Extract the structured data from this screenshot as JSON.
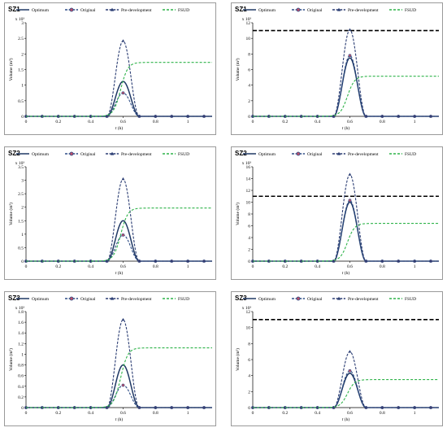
{
  "legend": [
    {
      "key": "optimum",
      "label": "Optimum",
      "color": "#1f3864",
      "dash": "",
      "marker": "none"
    },
    {
      "key": "original",
      "label": "Original",
      "color": "#2e4d86",
      "dash": "3,1.6",
      "marker": "circle"
    },
    {
      "key": "pre",
      "label": "Pre-development",
      "color": "#2b3d73",
      "dash": "3,1.6",
      "marker": "triangle"
    },
    {
      "key": "fsud",
      "label": "FSUD",
      "color": "#2fb34a",
      "dash": "3,2",
      "marker": "none"
    }
  ],
  "chart_data": [
    {
      "title": "SZ1",
      "type": "line",
      "xlabel": "t (h)",
      "ylabel": "Volume (m³)",
      "scale_label": "x 10³",
      "xlim": [
        0,
        1.15
      ],
      "xticks": [
        "0",
        "0.2",
        "0.4",
        "0.6",
        "0.8",
        "1"
      ],
      "ylim": [
        0,
        3
      ],
      "yticks": [
        "0",
        "0.5",
        "1",
        "1.5",
        "2",
        "2.5",
        "3"
      ],
      "threshold": null,
      "series": [
        {
          "key": "optimum",
          "name": "Optimum",
          "peak": 1.12
        },
        {
          "key": "original",
          "name": "Original",
          "peak": 0.75
        },
        {
          "key": "pre",
          "name": "Pre-development",
          "peak": 2.42
        },
        {
          "key": "fsud",
          "name": "FSUD",
          "final": 1.73
        }
      ]
    },
    {
      "title": "SZ1",
      "type": "line",
      "xlabel": "t (h)",
      "ylabel": "Volume (m³)",
      "scale_label": "x 10³",
      "xlim": [
        0,
        1.15
      ],
      "xticks": [
        "0",
        "0.2",
        "0.4",
        "0.6",
        "0.8",
        "1"
      ],
      "ylim": [
        0,
        12
      ],
      "yticks": [
        "0",
        "2",
        "4",
        "6",
        "8",
        "10",
        "12"
      ],
      "threshold": 11,
      "series": [
        {
          "key": "optimum",
          "name": "Optimum",
          "peak": 7.5
        },
        {
          "key": "original",
          "name": "Original",
          "peak": 7.8
        },
        {
          "key": "pre",
          "name": "Pre-development",
          "peak": 11.1
        },
        {
          "key": "fsud",
          "name": "FSUD",
          "final": 5.15
        }
      ]
    },
    {
      "title": "SZ2",
      "type": "line",
      "xlabel": "t (h)",
      "ylabel": "Volume (m³)",
      "scale_label": "x 10³",
      "xlim": [
        0,
        1.15
      ],
      "xticks": [
        "0",
        "0.2",
        "0.4",
        "0.6",
        "0.8",
        "1"
      ],
      "ylim": [
        0,
        3.5
      ],
      "yticks": [
        "0",
        "0.5",
        "1",
        "1.5",
        "2",
        "2.5",
        "3",
        "3.5"
      ],
      "threshold": null,
      "series": [
        {
          "key": "optimum",
          "name": "Optimum",
          "peak": 1.5
        },
        {
          "key": "original",
          "name": "Original",
          "peak": 0.97
        },
        {
          "key": "pre",
          "name": "Pre-development",
          "peak": 3.05
        },
        {
          "key": "fsud",
          "name": "FSUD",
          "final": 1.97
        }
      ]
    },
    {
      "title": "SZ2",
      "type": "line",
      "xlabel": "t (h)",
      "ylabel": "Volume (m³)",
      "scale_label": "x 10³",
      "xlim": [
        0,
        1.15
      ],
      "xticks": [
        "0",
        "0.2",
        "0.4",
        "0.6",
        "0.8",
        "1"
      ],
      "ylim": [
        0,
        16
      ],
      "yticks": [
        "0",
        "2",
        "4",
        "6",
        "8",
        "10",
        "12",
        "14",
        "16"
      ],
      "threshold": 11,
      "series": [
        {
          "key": "optimum",
          "name": "Optimum",
          "peak": 10.0
        },
        {
          "key": "original",
          "name": "Original",
          "peak": 10.3
        },
        {
          "key": "pre",
          "name": "Pre-development",
          "peak": 14.7
        },
        {
          "key": "fsud",
          "name": "FSUD",
          "final": 6.4
        }
      ]
    },
    {
      "title": "SZ3",
      "type": "line",
      "xlabel": "t (h)",
      "ylabel": "Volume (m³)",
      "scale_label": "x 10³",
      "xlim": [
        0,
        1.15
      ],
      "xticks": [
        "0",
        "0.2",
        "0.4",
        "0.6",
        "0.8",
        "1"
      ],
      "ylim": [
        0,
        1.8
      ],
      "yticks": [
        "0",
        "0.2",
        "0.4",
        "0.6",
        "0.8",
        "1",
        "1.2",
        "1.4",
        "1.6",
        "1.8"
      ],
      "threshold": null,
      "series": [
        {
          "key": "optimum",
          "name": "Optimum",
          "peak": 0.8
        },
        {
          "key": "original",
          "name": "Original",
          "peak": 0.42
        },
        {
          "key": "pre",
          "name": "Pre-development",
          "peak": 1.65
        },
        {
          "key": "fsud",
          "name": "FSUD",
          "final": 1.12
        }
      ]
    },
    {
      "title": "SZ3",
      "type": "line",
      "xlabel": "t (h)",
      "ylabel": "Volume (m³)",
      "scale_label": "x 10³",
      "xlim": [
        0,
        1.15
      ],
      "xticks": [
        "0",
        "0.2",
        "0.4",
        "0.6",
        "0.8",
        "1"
      ],
      "ylim": [
        0,
        12
      ],
      "yticks": [
        "0",
        "2",
        "4",
        "6",
        "8",
        "10",
        "12"
      ],
      "threshold": 11,
      "series": [
        {
          "key": "optimum",
          "name": "Optimum",
          "peak": 4.3
        },
        {
          "key": "original",
          "name": "Original",
          "peak": 4.6
        },
        {
          "key": "pre",
          "name": "Pre-development",
          "peak": 7.0
        },
        {
          "key": "fsud",
          "name": "FSUD",
          "final": 3.5
        }
      ]
    }
  ]
}
